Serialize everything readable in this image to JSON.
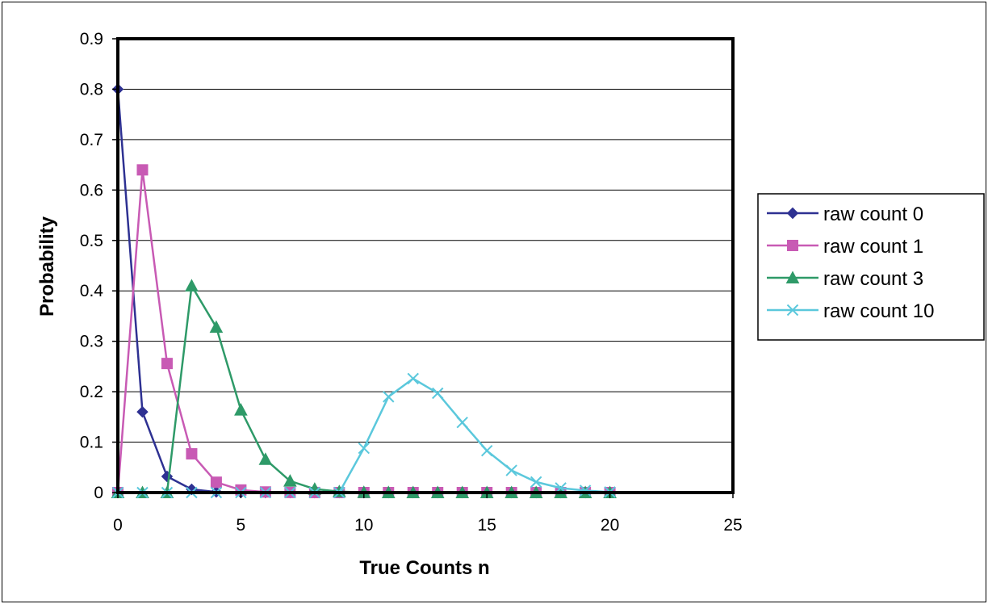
{
  "chart_data": {
    "type": "line",
    "title": "",
    "xlabel": "True Counts n",
    "ylabel": "Probability",
    "xlim": [
      0,
      25
    ],
    "ylim": [
      0,
      0.9
    ],
    "xticks": [
      0,
      5,
      10,
      15,
      20,
      25
    ],
    "yticks": [
      0,
      0.1,
      0.2,
      0.3,
      0.4,
      0.5,
      0.6,
      0.7,
      0.8,
      0.9
    ],
    "ytick_labels": [
      "0",
      "0.1",
      "0.2",
      "0.3",
      "0.4",
      "0.5",
      "0.6",
      "0.7",
      "0.8",
      "0.9"
    ],
    "grid": "horizontal",
    "legend_position": "right",
    "x": [
      0,
      1,
      2,
      3,
      4,
      5,
      6,
      7,
      8,
      9,
      10,
      11,
      12,
      13,
      14,
      15,
      16,
      17,
      18,
      19,
      20
    ],
    "series": [
      {
        "name": "raw count 0",
        "color": "#2e3192",
        "marker": "diamond",
        "values": [
          0.8,
          0.16,
          0.032,
          0.0064,
          0.0013,
          0.0003,
          0.0001,
          0,
          0,
          0,
          0,
          0,
          0,
          0,
          0,
          0,
          0,
          0,
          0,
          0,
          0
        ]
      },
      {
        "name": "raw count 1",
        "color": "#c85ab4",
        "marker": "square",
        "values": [
          0,
          0.64,
          0.256,
          0.0768,
          0.0205,
          0.0051,
          0.0012,
          0.0003,
          0.0001,
          0,
          0,
          0,
          0,
          0,
          0,
          0,
          0,
          0,
          0,
          0,
          0
        ]
      },
      {
        "name": "raw count 3",
        "color": "#2e9a68",
        "marker": "triangle",
        "values": [
          0,
          0,
          0,
          0.41,
          0.328,
          0.164,
          0.066,
          0.023,
          0.007,
          0.002,
          0.0005,
          0.0001,
          0,
          0,
          0,
          0,
          0,
          0,
          0,
          0,
          0
        ]
      },
      {
        "name": "raw count 10",
        "color": "#5bc8dc",
        "marker": "x",
        "values": [
          0,
          0,
          0,
          0,
          0,
          0,
          0,
          0,
          0,
          0,
          0.088,
          0.19,
          0.226,
          0.197,
          0.139,
          0.083,
          0.044,
          0.021,
          0.009,
          0.004,
          0.001
        ]
      }
    ]
  }
}
